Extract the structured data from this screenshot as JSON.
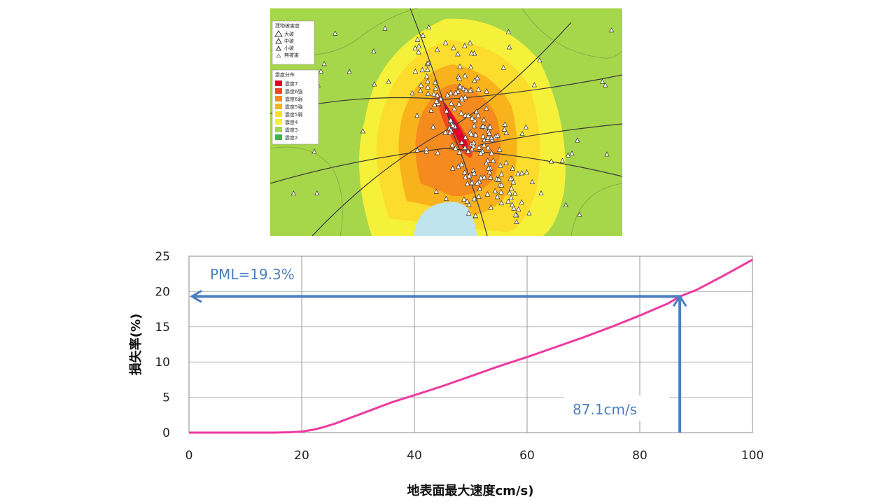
{
  "map": {
    "legend_building": {
      "title": "建物被害度",
      "items": [
        {
          "label": "大破",
          "icon": "triangle-large-icon"
        },
        {
          "label": "中破",
          "icon": "triangle-medium-icon"
        },
        {
          "label": "小破",
          "icon": "triangle-small-icon"
        },
        {
          "label": "無被害",
          "icon": "triangle-none-icon"
        }
      ]
    },
    "legend_intensity": {
      "title": "震度分布",
      "items": [
        {
          "label": "震度7",
          "color": "#e0002a"
        },
        {
          "label": "震度6強",
          "color": "#ec4a1e"
        },
        {
          "label": "震度6弱",
          "color": "#f58a1f"
        },
        {
          "label": "震度5強",
          "color": "#f8b21c"
        },
        {
          "label": "震度5弱",
          "color": "#fcdc2c"
        },
        {
          "label": "震度4",
          "color": "#f5f03a"
        },
        {
          "label": "震度3",
          "color": "#a6d64a"
        },
        {
          "label": "震度2",
          "color": "#3db34a"
        }
      ]
    },
    "colors": {
      "land": "#a6d64a",
      "sea": "#bfe4ee"
    }
  },
  "chart_data": {
    "type": "line",
    "xlabel": "地表面最大速度cm/s)",
    "ylabel": "損失率(%)",
    "xlim": [
      0,
      100
    ],
    "ylim": [
      0,
      25
    ],
    "xticks": [
      0,
      20,
      40,
      60,
      80,
      100
    ],
    "yticks": [
      0,
      5,
      10,
      15,
      20,
      25
    ],
    "grid": true,
    "series": [
      {
        "color": "#ee3aa0",
        "x": [
          0,
          5,
          10,
          15,
          18,
          20,
          22,
          24,
          26,
          28,
          30,
          32,
          34,
          36,
          38,
          40,
          45,
          50,
          55,
          60,
          65,
          70,
          75,
          80,
          85,
          87.1,
          90,
          95,
          100
        ],
        "y": [
          0,
          0,
          0,
          0,
          0.05,
          0.15,
          0.4,
          0.8,
          1.3,
          1.9,
          2.5,
          3.1,
          3.7,
          4.3,
          4.8,
          5.3,
          6.6,
          8.0,
          9.4,
          10.7,
          12.1,
          13.5,
          15.0,
          16.6,
          18.3,
          19.3,
          20.2,
          22.3,
          24.5
        ]
      }
    ],
    "annotations": {
      "pml_label": "PML=19.3%",
      "pml_value": 19.3,
      "velocity_label": "87.1cm/s",
      "velocity_value": 87.1,
      "arrow_color": "#4a7fc1"
    }
  }
}
